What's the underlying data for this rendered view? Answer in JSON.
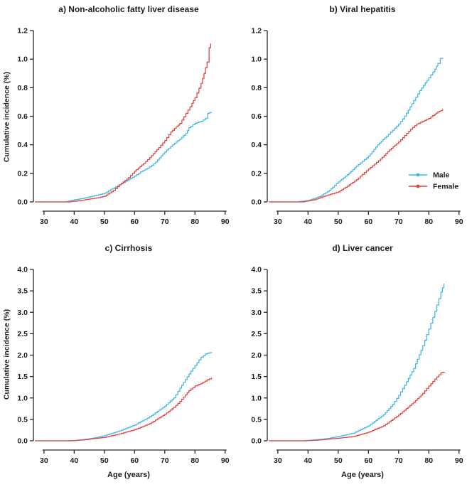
{
  "figure": {
    "ylabel": "Cumulative incidence (%)",
    "xlabel": "Age (years)"
  },
  "colors": {
    "male": "#3db6e8",
    "female": "#e2403c",
    "axis": "#262626",
    "text": "#1d1d1d",
    "background": "#ffffff"
  },
  "legend": {
    "entries": [
      {
        "label": "Male",
        "color": "#3db6e8"
      },
      {
        "label": "Female",
        "color": "#e2403c"
      }
    ],
    "location": "right-middle-of-panel-b"
  },
  "chart_data": [
    {
      "id": "a",
      "type": "line",
      "title": "a) Non-alcoholic fatty liver disease",
      "xlabel": "",
      "ylabel": "Cumulative incidence (%)",
      "xlim": [
        26.5,
        91
      ],
      "ylim": [
        0,
        1.2
      ],
      "xticks": [
        30,
        40,
        50,
        60,
        70,
        80,
        90
      ],
      "yticks": [
        0.0,
        0.2,
        0.4,
        0.6,
        0.8,
        1.0,
        1.2
      ],
      "show_legend": false,
      "grid": false,
      "series": [
        {
          "name": "Male",
          "color": "#3db6e8",
          "points": [
            [
              27,
              0
            ],
            [
              37,
              0
            ],
            [
              40,
              0.015
            ],
            [
              43,
              0.025
            ],
            [
              46,
              0.04
            ],
            [
              50,
              0.06
            ],
            [
              52,
              0.085
            ],
            [
              55,
              0.12
            ],
            [
              57,
              0.145
            ],
            [
              60,
              0.18
            ],
            [
              62,
              0.21
            ],
            [
              65,
              0.245
            ],
            [
              67,
              0.28
            ],
            [
              70,
              0.35
            ],
            [
              72,
              0.39
            ],
            [
              75,
              0.44
            ],
            [
              77,
              0.48
            ],
            [
              78,
              0.52
            ],
            [
              80,
              0.55
            ],
            [
              82,
              0.565
            ],
            [
              83.5,
              0.585
            ],
            [
              84.2,
              0.62
            ],
            [
              85.4,
              0.63
            ]
          ]
        },
        {
          "name": "Female",
          "color": "#e2403c",
          "points": [
            [
              27,
              0
            ],
            [
              38,
              0
            ],
            [
              42,
              0.01
            ],
            [
              45,
              0.02
            ],
            [
              48,
              0.03
            ],
            [
              50,
              0.04
            ],
            [
              53,
              0.08
            ],
            [
              55,
              0.12
            ],
            [
              58,
              0.17
            ],
            [
              60,
              0.215
            ],
            [
              63,
              0.27
            ],
            [
              65,
              0.31
            ],
            [
              68,
              0.38
            ],
            [
              70,
              0.43
            ],
            [
              72,
              0.49
            ],
            [
              75,
              0.55
            ],
            [
              77,
              0.62
            ],
            [
              79,
              0.69
            ],
            [
              80,
              0.73
            ],
            [
              82,
              0.83
            ],
            [
              83,
              0.9
            ],
            [
              84,
              0.98
            ],
            [
              84.7,
              1.08
            ],
            [
              85.2,
              1.11
            ]
          ]
        }
      ]
    },
    {
      "id": "b",
      "type": "line",
      "title": "b) Viral hepatitis",
      "xlabel": "",
      "ylabel": "",
      "xlim": [
        26.5,
        91
      ],
      "ylim": [
        0,
        1.2
      ],
      "xticks": [
        30,
        40,
        50,
        60,
        70,
        80,
        90
      ],
      "yticks": [
        0.0,
        0.2,
        0.4,
        0.6,
        0.8,
        1.0,
        1.2
      ],
      "show_legend": true,
      "grid": false,
      "series": [
        {
          "name": "Male",
          "color": "#3db6e8",
          "points": [
            [
              27,
              0
            ],
            [
              36,
              0
            ],
            [
              40,
              0.01
            ],
            [
              44,
              0.04
            ],
            [
              47,
              0.08
            ],
            [
              50,
              0.14
            ],
            [
              53,
              0.19
            ],
            [
              56,
              0.25
            ],
            [
              60,
              0.32
            ],
            [
              63,
              0.4
            ],
            [
              66,
              0.46
            ],
            [
              70,
              0.545
            ],
            [
              72,
              0.6
            ],
            [
              75,
              0.71
            ],
            [
              77,
              0.78
            ],
            [
              80,
              0.87
            ],
            [
              82,
              0.93
            ],
            [
              83,
              0.97
            ],
            [
              83.8,
              1.005
            ],
            [
              84.6,
              1.01
            ]
          ]
        },
        {
          "name": "Female",
          "color": "#e2403c",
          "points": [
            [
              27,
              0
            ],
            [
              38,
              0
            ],
            [
              42,
              0.015
            ],
            [
              46,
              0.045
            ],
            [
              50,
              0.07
            ],
            [
              53,
              0.11
            ],
            [
              56,
              0.155
            ],
            [
              60,
              0.23
            ],
            [
              64,
              0.3
            ],
            [
              67,
              0.365
            ],
            [
              70,
              0.42
            ],
            [
              72,
              0.465
            ],
            [
              74,
              0.51
            ],
            [
              76,
              0.545
            ],
            [
              78,
              0.565
            ],
            [
              80,
              0.585
            ],
            [
              82,
              0.615
            ],
            [
              83,
              0.63
            ],
            [
              84,
              0.64
            ],
            [
              84.6,
              0.65
            ]
          ]
        }
      ]
    },
    {
      "id": "c",
      "type": "line",
      "title": "c) Cirrhosis",
      "xlabel": "Age (years)",
      "ylabel": "Cumulative incidence (%)",
      "xlim": [
        26.5,
        91
      ],
      "ylim": [
        0,
        4.0
      ],
      "xticks": [
        30,
        40,
        50,
        60,
        70,
        80,
        90
      ],
      "yticks": [
        0.0,
        0.5,
        1.0,
        1.5,
        2.0,
        2.5,
        3.0,
        3.5,
        4.0
      ],
      "show_legend": false,
      "grid": false,
      "series": [
        {
          "name": "Male",
          "color": "#3db6e8",
          "points": [
            [
              27,
              0
            ],
            [
              38,
              0
            ],
            [
              42,
              0.02
            ],
            [
              46,
              0.06
            ],
            [
              50,
              0.12
            ],
            [
              55,
              0.23
            ],
            [
              60,
              0.37
            ],
            [
              65,
              0.56
            ],
            [
              70,
              0.81
            ],
            [
              73,
              1.0
            ],
            [
              75,
              1.23
            ],
            [
              78,
              1.56
            ],
            [
              80,
              1.76
            ],
            [
              82,
              1.95
            ],
            [
              83.5,
              2.03
            ],
            [
              85.5,
              2.07
            ]
          ]
        },
        {
          "name": "Female",
          "color": "#e2403c",
          "points": [
            [
              27,
              0
            ],
            [
              39,
              0
            ],
            [
              43,
              0.02
            ],
            [
              47,
              0.055
            ],
            [
              50,
              0.08
            ],
            [
              55,
              0.16
            ],
            [
              60,
              0.26
            ],
            [
              65,
              0.4
            ],
            [
              70,
              0.62
            ],
            [
              73,
              0.78
            ],
            [
              75,
              0.92
            ],
            [
              78,
              1.17
            ],
            [
              80,
              1.28
            ],
            [
              82,
              1.34
            ],
            [
              84,
              1.42
            ],
            [
              85.5,
              1.47
            ]
          ]
        }
      ]
    },
    {
      "id": "d",
      "type": "line",
      "title": "d) Liver cancer",
      "xlabel": "Age (years)",
      "ylabel": "",
      "xlim": [
        26.5,
        91
      ],
      "ylim": [
        0,
        4.0
      ],
      "xticks": [
        30,
        40,
        50,
        60,
        70,
        80,
        90
      ],
      "yticks": [
        0.0,
        0.5,
        1.0,
        1.5,
        2.0,
        2.5,
        3.0,
        3.5,
        4.0
      ],
      "show_legend": false,
      "grid": false,
      "series": [
        {
          "name": "Male",
          "color": "#3db6e8",
          "points": [
            [
              27,
              0
            ],
            [
              38,
              0
            ],
            [
              42,
              0.02
            ],
            [
              46,
              0.05
            ],
            [
              50,
              0.1
            ],
            [
              55,
              0.18
            ],
            [
              60,
              0.35
            ],
            [
              65,
              0.61
            ],
            [
              68,
              0.85
            ],
            [
              70,
              1.06
            ],
            [
              72,
              1.3
            ],
            [
              75,
              1.69
            ],
            [
              78,
              2.22
            ],
            [
              80,
              2.61
            ],
            [
              82,
              3.02
            ],
            [
              84,
              3.47
            ],
            [
              85,
              3.67
            ]
          ]
        },
        {
          "name": "Female",
          "color": "#e2403c",
          "points": [
            [
              27,
              0
            ],
            [
              39,
              0
            ],
            [
              43,
              0.015
            ],
            [
              47,
              0.04
            ],
            [
              50,
              0.06
            ],
            [
              55,
              0.1
            ],
            [
              60,
              0.2
            ],
            [
              65,
              0.35
            ],
            [
              70,
              0.6
            ],
            [
              75,
              0.9
            ],
            [
              78,
              1.11
            ],
            [
              80,
              1.28
            ],
            [
              82,
              1.44
            ],
            [
              84,
              1.59
            ],
            [
              85.2,
              1.61
            ]
          ]
        }
      ]
    }
  ]
}
